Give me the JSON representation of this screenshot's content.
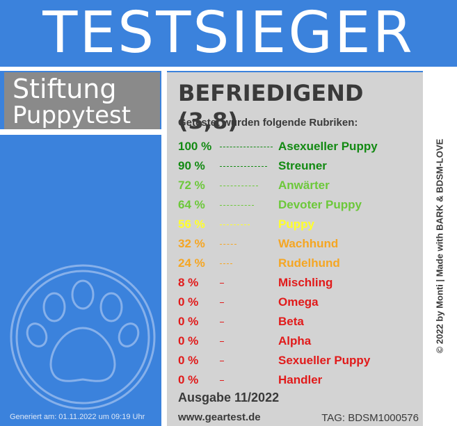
{
  "banner": {
    "title": "TESTSIEGER"
  },
  "brand": {
    "line1": "Stiftung",
    "line2": "Puppytest"
  },
  "result": {
    "rating": "BEFRIEDIGEND (3,8)",
    "intro": "Getestet wurden folgende Rubriken:",
    "categories": [
      {
        "percent": "100 %",
        "label": "Asexueller Puppy",
        "value": 100,
        "color": "#138a13"
      },
      {
        "percent": "90 %",
        "label": "Streuner",
        "value": 90,
        "color": "#138a13"
      },
      {
        "percent": "72 %",
        "label": "Anwärter",
        "value": 72,
        "color": "#6cc83a"
      },
      {
        "percent": "64 %",
        "label": "Devoter Puppy",
        "value": 64,
        "color": "#6cc83a"
      },
      {
        "percent": "56 %",
        "label": "Puppy",
        "value": 56,
        "color": "#ffff2a"
      },
      {
        "percent": "32 %",
        "label": "Wachhund",
        "value": 32,
        "color": "#f5a623"
      },
      {
        "percent": "24 %",
        "label": "Rudelhund",
        "value": 24,
        "color": "#f5a623"
      },
      {
        "percent": "8 %",
        "label": "Mischling",
        "value": 8,
        "color": "#e11a1a"
      },
      {
        "percent": "0 %",
        "label": "Omega",
        "value": 0,
        "color": "#e11a1a"
      },
      {
        "percent": "0 %",
        "label": "Beta",
        "value": 0,
        "color": "#e11a1a"
      },
      {
        "percent": "0 %",
        "label": "Alpha",
        "value": 0,
        "color": "#e11a1a"
      },
      {
        "percent": "0 %",
        "label": "Sexueller Puppy",
        "value": 0,
        "color": "#e11a1a"
      },
      {
        "percent": "0 %",
        "label": "Handler",
        "value": 0,
        "color": "#e11a1a"
      }
    ],
    "issue": "Ausgabe 11/2022",
    "site": "www.geartest.de",
    "tag": "TAG: BDSM1000576"
  },
  "generated": "Generiert am: 01.11.2022 um 09:19 Uhr",
  "credit": "© 2022 by Monti | Made with BARK & BDSM-LOVE",
  "colors": {
    "frame": "#3b82dc",
    "panel": "#d3d3d3",
    "brand_box": "#8a8a8a"
  },
  "icons": {
    "watermark": "paw-print-icon"
  }
}
